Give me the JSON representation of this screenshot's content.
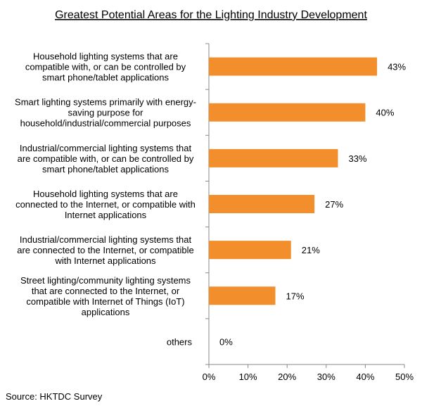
{
  "chart_data": {
    "type": "bar",
    "orientation": "horizontal",
    "title": "Greatest Potential Areas for the Lighting Industry Development",
    "xlabel": "",
    "ylabel": "",
    "categories": [
      [
        "Household lighting systems that are",
        "compatible with, or can be controlled by",
        "smart phone/tablet applications"
      ],
      [
        "Smart lighting systems primarily with energy-",
        "saving purpose for",
        "household/industrial/commercial purposes"
      ],
      [
        "Industrial/commercial lighting systems that",
        "are compatible with, or can be controlled by",
        "smart phone/tablet applications"
      ],
      [
        "Household lighting systems that are",
        "connected to the Internet, or compatible with",
        "Internet applications"
      ],
      [
        "Industrial/commercial lighting systems that",
        "are connected to the Internet, or compatible",
        "with Internet applications"
      ],
      [
        "Street lighting/community lighting systems",
        "that are connected to the Internet, or",
        "compatible with Internet of Things (IoT)",
        "applications"
      ],
      [
        "others"
      ]
    ],
    "values": [
      43,
      40,
      33,
      27,
      21,
      17,
      0
    ],
    "value_labels": [
      "43%",
      "40%",
      "33%",
      "27%",
      "21%",
      "17%",
      "0%"
    ],
    "xlim": [
      0,
      50
    ],
    "ticks": [
      0,
      10,
      20,
      30,
      40,
      50
    ],
    "tick_labels": [
      "0%",
      "10%",
      "20%",
      "30%",
      "40%",
      "50%"
    ],
    "bar_color": "#F28E2B",
    "grid": false,
    "legend": "none"
  },
  "source": "Source: HKTDC Survey"
}
